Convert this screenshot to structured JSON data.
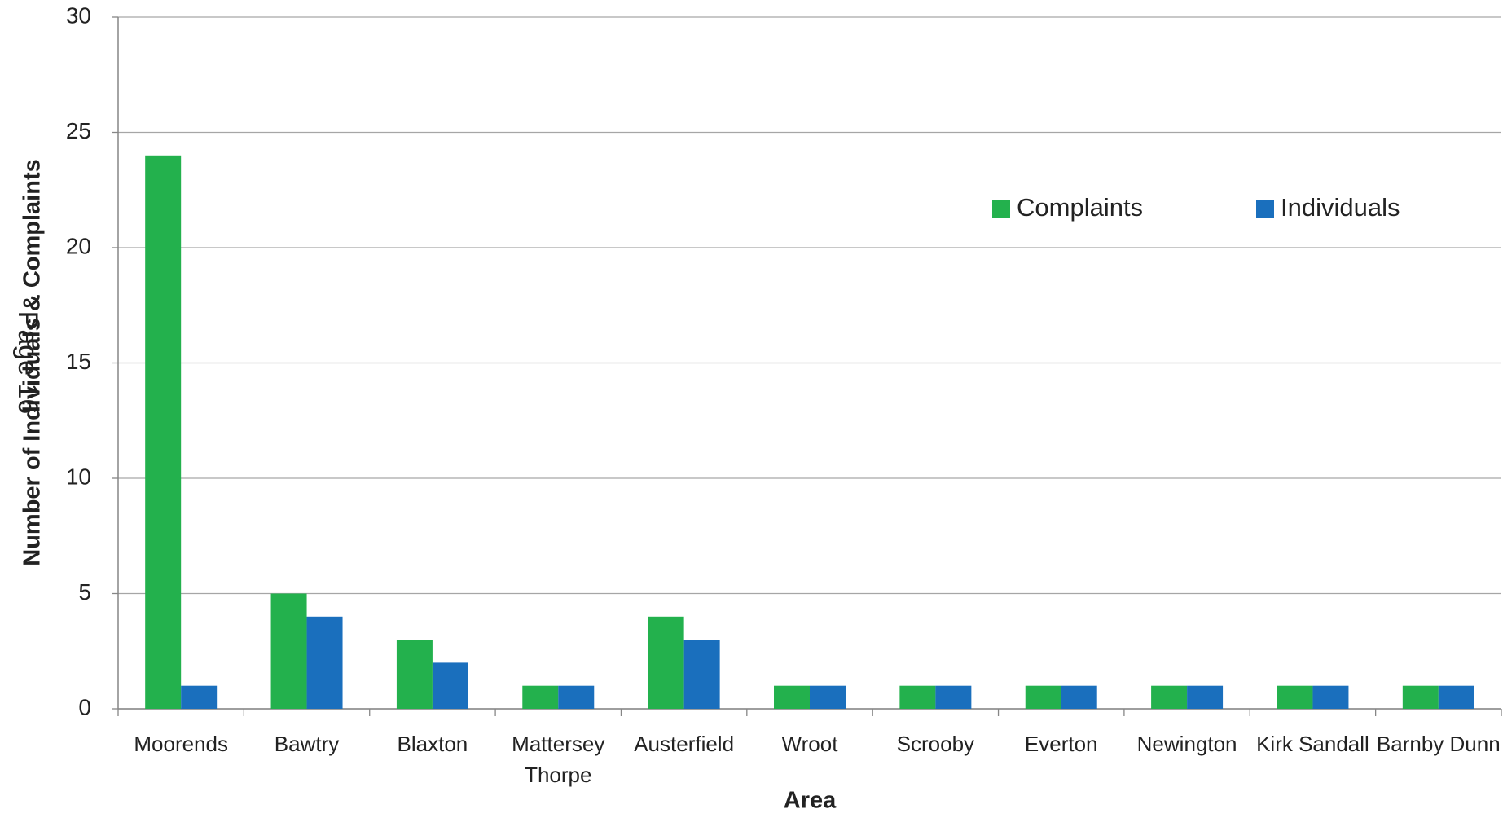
{
  "chart_data": {
    "type": "bar",
    "categories": [
      "Moorends",
      "Bawtry",
      "Blaxton",
      "Mattersey Thorpe",
      "Austerfield",
      "Wroot",
      "Scrooby",
      "Everton",
      "Newington",
      "Kirk Sandall",
      "Barnby Dunn"
    ],
    "series": [
      {
        "name": "Complaints",
        "color": "#23b14d",
        "values": [
          24,
          5,
          3,
          1,
          4,
          1,
          1,
          1,
          1,
          1,
          1
        ]
      },
      {
        "name": "Individuals",
        "color": "#1a6fbd",
        "values": [
          1,
          4,
          2,
          1,
          3,
          1,
          1,
          1,
          1,
          1,
          1
        ]
      }
    ],
    "xlabel": "Area",
    "ylabel": "Number of Individuals & Complaints",
    "annotation": "Page 16",
    "ylim": [
      0,
      30
    ],
    "yticks": [
      0,
      5,
      10,
      15,
      20,
      25,
      30
    ],
    "grid": true,
    "legend": "upper right"
  }
}
